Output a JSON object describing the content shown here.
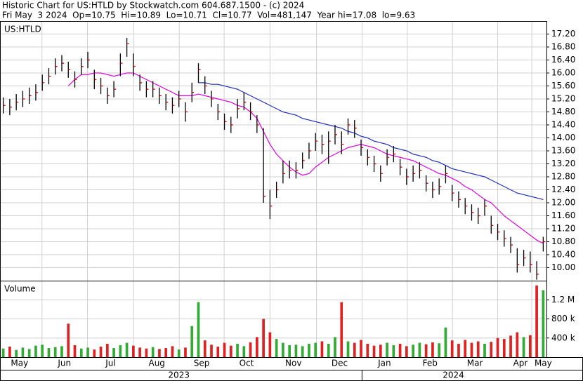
{
  "header": {
    "line1": "Historic Chart for US:HTLD by Stockwatch.com 604.687.1500 - (c) 2024",
    "line2": "Fri May  3 2024  Op=10.75  Hi=10.89  Lo=10.71  Cl=10.77  Vol=481,147  Year hi=17.08  lo=9.63"
  },
  "chart_data": [
    {
      "type": "ohlc",
      "title": "US:HTLD",
      "color": "#000000",
      "close_color": "#cc0000",
      "grid": true,
      "xlim": [
        0,
        84
      ],
      "ylim": [
        9.6,
        17.6
      ],
      "yticks": [
        {
          "value": 10.0,
          "label": "10.00"
        },
        {
          "value": 10.4,
          "label": "10.40"
        },
        {
          "value": 10.8,
          "label": "10.80"
        },
        {
          "value": 11.2,
          "label": "11.20"
        },
        {
          "value": 11.6,
          "label": "11.60"
        },
        {
          "value": 12.0,
          "label": "12.00"
        },
        {
          "value": 12.4,
          "label": "12.40"
        },
        {
          "value": 12.8,
          "label": "12.80"
        },
        {
          "value": 13.2,
          "label": "13.20"
        },
        {
          "value": 13.6,
          "label": "13.60"
        },
        {
          "value": 14.0,
          "label": "14.00"
        },
        {
          "value": 14.4,
          "label": "14.40"
        },
        {
          "value": 14.8,
          "label": "14.80"
        },
        {
          "value": 15.2,
          "label": "15.20"
        },
        {
          "value": 15.6,
          "label": "15.60"
        },
        {
          "value": 16.0,
          "label": "16.00"
        },
        {
          "value": 16.4,
          "label": "16.40"
        },
        {
          "value": 16.8,
          "label": "16.80"
        },
        {
          "value": 17.2,
          "label": "17.20"
        }
      ],
      "close": [
        15.0,
        14.95,
        15.1,
        15.2,
        15.3,
        15.4,
        15.7,
        15.9,
        16.2,
        16.3,
        16.1,
        15.8,
        16.2,
        16.4,
        15.8,
        15.6,
        15.3,
        15.5,
        16.3,
        16.9,
        16.2,
        15.7,
        15.5,
        15.5,
        15.3,
        15.1,
        15.0,
        15.2,
        14.8,
        15.4,
        16.1,
        15.6,
        15.2,
        14.8,
        14.5,
        14.4,
        14.9,
        15.1,
        14.8,
        14.4,
        12.2,
        11.9,
        12.4,
        12.9,
        13.0,
        13.0,
        13.3,
        13.6,
        13.9,
        13.8,
        13.9,
        14.1,
        13.8,
        14.4,
        14.3,
        13.7,
        13.4,
        13.2,
        12.9,
        13.4,
        13.5,
        13.1,
        12.8,
        12.9,
        13.0,
        12.6,
        12.4,
        12.5,
        12.9,
        12.3,
        12.1,
        11.9,
        11.7,
        11.6,
        11.9,
        11.3,
        11.1,
        10.9,
        10.7,
        10.1,
        10.3,
        10.1,
        9.8,
        10.8
      ],
      "high": [
        15.25,
        15.2,
        15.35,
        15.45,
        15.55,
        15.65,
        15.95,
        16.15,
        16.45,
        16.55,
        16.35,
        16.05,
        16.45,
        16.65,
        16.1,
        15.85,
        15.55,
        15.75,
        16.6,
        17.08,
        16.6,
        15.95,
        15.75,
        15.75,
        15.55,
        15.35,
        15.25,
        15.45,
        15.1,
        15.7,
        16.3,
        15.9,
        15.45,
        15.05,
        14.75,
        14.65,
        15.2,
        15.4,
        15.1,
        14.7,
        14.3,
        12.4,
        12.65,
        13.3,
        13.3,
        13.25,
        13.55,
        13.85,
        14.15,
        14.1,
        14.2,
        14.4,
        14.2,
        14.6,
        14.55,
        13.95,
        13.65,
        13.45,
        13.15,
        13.65,
        13.75,
        13.35,
        13.05,
        13.15,
        13.25,
        12.85,
        12.65,
        12.75,
        13.15,
        12.55,
        12.35,
        12.15,
        11.95,
        11.85,
        12.1,
        11.6,
        11.35,
        11.15,
        10.95,
        10.6,
        10.55,
        10.5,
        10.2,
        10.95
      ],
      "low": [
        14.75,
        14.7,
        14.85,
        14.95,
        15.05,
        15.15,
        15.45,
        15.65,
        15.95,
        16.05,
        15.85,
        15.55,
        15.95,
        16.15,
        15.5,
        15.35,
        15.05,
        15.25,
        15.9,
        16.5,
        15.9,
        15.45,
        15.25,
        15.25,
        15.05,
        14.85,
        14.75,
        14.95,
        14.5,
        15.1,
        15.7,
        15.35,
        14.95,
        14.55,
        14.25,
        14.15,
        14.6,
        14.85,
        14.55,
        14.15,
        12.0,
        11.5,
        12.15,
        12.6,
        12.75,
        12.75,
        13.05,
        13.35,
        13.6,
        13.5,
        13.2,
        13.8,
        13.5,
        14.1,
        14.0,
        13.45,
        13.15,
        12.95,
        12.65,
        13.15,
        13.25,
        12.85,
        12.55,
        12.65,
        12.75,
        12.35,
        12.15,
        12.25,
        12.6,
        12.05,
        11.85,
        11.65,
        11.45,
        11.35,
        11.6,
        11.05,
        10.85,
        10.65,
        10.45,
        9.85,
        10.05,
        9.85,
        9.63,
        10.5
      ],
      "series": [
        {
          "color": "#dd00dd",
          "values": [
            null,
            null,
            null,
            null,
            null,
            null,
            null,
            null,
            null,
            null,
            15.6,
            15.8,
            15.95,
            15.95,
            16.0,
            16.0,
            15.95,
            15.9,
            15.95,
            16.0,
            16.0,
            15.9,
            15.8,
            15.7,
            15.6,
            15.5,
            15.4,
            15.3,
            15.3,
            15.3,
            15.35,
            15.3,
            15.25,
            15.2,
            15.15,
            15.1,
            15.0,
            14.95,
            14.8,
            14.6,
            14.2,
            13.8,
            13.5,
            13.3,
            13.1,
            12.95,
            12.85,
            12.9,
            13.1,
            13.25,
            13.4,
            13.5,
            13.6,
            13.7,
            13.75,
            13.8,
            13.75,
            13.7,
            13.6,
            13.5,
            13.45,
            13.4,
            13.35,
            13.3,
            13.2,
            13.1,
            13.0,
            12.9,
            12.85,
            12.75,
            12.65,
            12.5,
            12.4,
            12.25,
            12.1,
            12.0,
            11.8,
            11.6,
            11.45,
            11.3,
            11.15,
            11.0,
            10.85,
            10.75
          ]
        },
        {
          "color": "#2233bb",
          "values": [
            null,
            null,
            null,
            null,
            null,
            null,
            null,
            null,
            null,
            null,
            null,
            null,
            null,
            null,
            null,
            null,
            null,
            null,
            null,
            null,
            null,
            null,
            null,
            null,
            null,
            null,
            null,
            null,
            null,
            null,
            15.7,
            15.7,
            15.65,
            15.65,
            15.6,
            15.55,
            15.5,
            15.4,
            15.3,
            15.2,
            15.1,
            15.0,
            14.9,
            14.8,
            14.75,
            14.7,
            14.6,
            14.55,
            14.5,
            14.45,
            14.4,
            14.35,
            14.3,
            14.2,
            14.15,
            14.05,
            14.0,
            13.9,
            13.85,
            13.8,
            13.7,
            13.65,
            13.6,
            13.5,
            13.45,
            13.4,
            13.3,
            13.25,
            13.15,
            13.05,
            13.0,
            12.95,
            12.9,
            12.85,
            12.8,
            12.7,
            12.6,
            12.5,
            12.4,
            12.3,
            12.25,
            12.2,
            12.15,
            12.1
          ]
        }
      ]
    },
    {
      "type": "bar",
      "title": "Volume",
      "up_color": "#33aa33",
      "down_color": "#dd2222",
      "grid": true,
      "xlim": [
        0,
        84
      ],
      "ylim": [
        0,
        1600000
      ],
      "yticks": [
        {
          "value": 400000,
          "label": "400 k"
        },
        {
          "value": 800000,
          "label": "800 k"
        },
        {
          "value": 1200000,
          "label": "1.2 M"
        }
      ],
      "values": [
        180000,
        220000,
        150000,
        200000,
        170000,
        240000,
        260000,
        190000,
        210000,
        230000,
        700000,
        250000,
        180000,
        200000,
        160000,
        220000,
        280000,
        190000,
        250000,
        300000,
        240000,
        200000,
        180000,
        210000,
        170000,
        190000,
        230000,
        160000,
        200000,
        650000,
        1150000,
        350000,
        260000,
        220000,
        300000,
        240000,
        280000,
        230000,
        310000,
        420000,
        800000,
        520000,
        380000,
        300000,
        250000,
        260000,
        230000,
        280000,
        300000,
        330000,
        280000,
        420000,
        1150000,
        330000,
        300000,
        360000,
        280000,
        240000,
        260000,
        300000,
        250000,
        280000,
        230000,
        260000,
        300000,
        270000,
        310000,
        290000,
        620000,
        350000,
        280000,
        360000,
        300000,
        330000,
        280000,
        320000,
        400000,
        380000,
        450000,
        520000,
        420000,
        460000,
        1500000,
        1400000
      ],
      "xticks": [
        {
          "value": 3.0,
          "label": "May"
        },
        {
          "value": 9.9,
          "label": "Jun"
        },
        {
          "value": 17.0,
          "label": "Jul"
        },
        {
          "value": 24.1,
          "label": "Aug"
        },
        {
          "value": 31.0,
          "label": "Sep"
        },
        {
          "value": 37.9,
          "label": "Oct"
        },
        {
          "value": 45.1,
          "label": "Nov"
        },
        {
          "value": 52.2,
          "label": "Dec"
        },
        {
          "value": 59.1,
          "label": "Jan"
        },
        {
          "value": 66.1,
          "label": "Feb"
        },
        {
          "value": 73.0,
          "label": "Mar"
        },
        {
          "value": 80.0,
          "label": "Apr"
        },
        {
          "value": 83.5,
          "label": "May"
        }
      ],
      "years": [
        {
          "value": 27.5,
          "label": "2023"
        },
        {
          "value": 69.7,
          "label": "2024"
        }
      ]
    }
  ]
}
